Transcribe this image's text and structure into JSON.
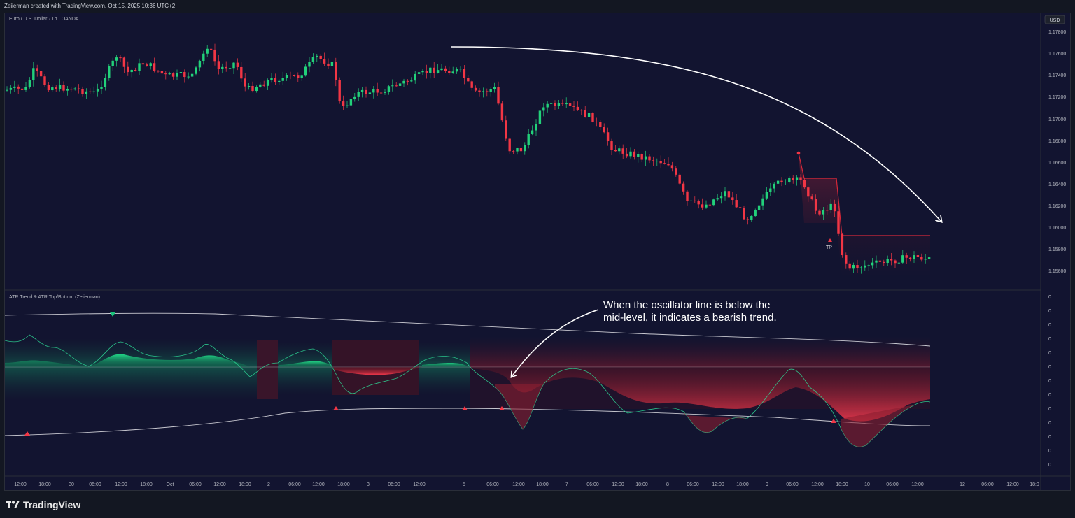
{
  "header": {
    "attribution": "Zeiierman created with TradingView.com, Oct 15, 2025 10:36 UTC+2"
  },
  "chart": {
    "symbol_title": "Euro / U.S. Dollar · 1h · OANDA",
    "currency_button": "USD",
    "price_ticks": [
      "1.17800",
      "1.17600",
      "1.17400",
      "1.17200",
      "1.17000",
      "1.16800",
      "1.16600",
      "1.16400",
      "1.16200",
      "1.16000",
      "1.15800",
      "1.15600"
    ],
    "tp_label": "TP",
    "up_color": "#26a69a",
    "candle_up_color": "#22d17a",
    "candle_down_color": "#f23645"
  },
  "indicator": {
    "title": "ATR Trend & ATR Top/Bottom (Zeiierman)",
    "scale_ticks": [
      "0",
      "0",
      "0",
      "0",
      "0",
      "0",
      "0",
      "0",
      "0",
      "0",
      "0",
      "0",
      "0"
    ],
    "bull_color": "#19c27a",
    "bear_color": "#e8303f"
  },
  "annotation": {
    "line1": "When the oscillator line is below the",
    "line2": "mid-level, it indicates a bearish trend."
  },
  "time_axis": {
    "labels": [
      "12:00",
      "18:00",
      "30",
      "06:00",
      "12:00",
      "18:00",
      "Oct",
      "06:00",
      "12:00",
      "18:00",
      "2",
      "06:00",
      "12:00",
      "18:00",
      "3",
      "06:00",
      "12:00",
      "5",
      "06:00",
      "12:00",
      "18:00",
      "7",
      "06:00",
      "12:00",
      "18:00",
      "8",
      "06:00",
      "12:00",
      "18:00",
      "9",
      "06:00",
      "12:00",
      "18:00",
      "10",
      "06:00",
      "12:00",
      "12",
      "06:00",
      "12:00",
      "18:0"
    ]
  },
  "footer": {
    "brand": "TradingView",
    "logo_icon": "tradingview-logo-icon"
  }
}
